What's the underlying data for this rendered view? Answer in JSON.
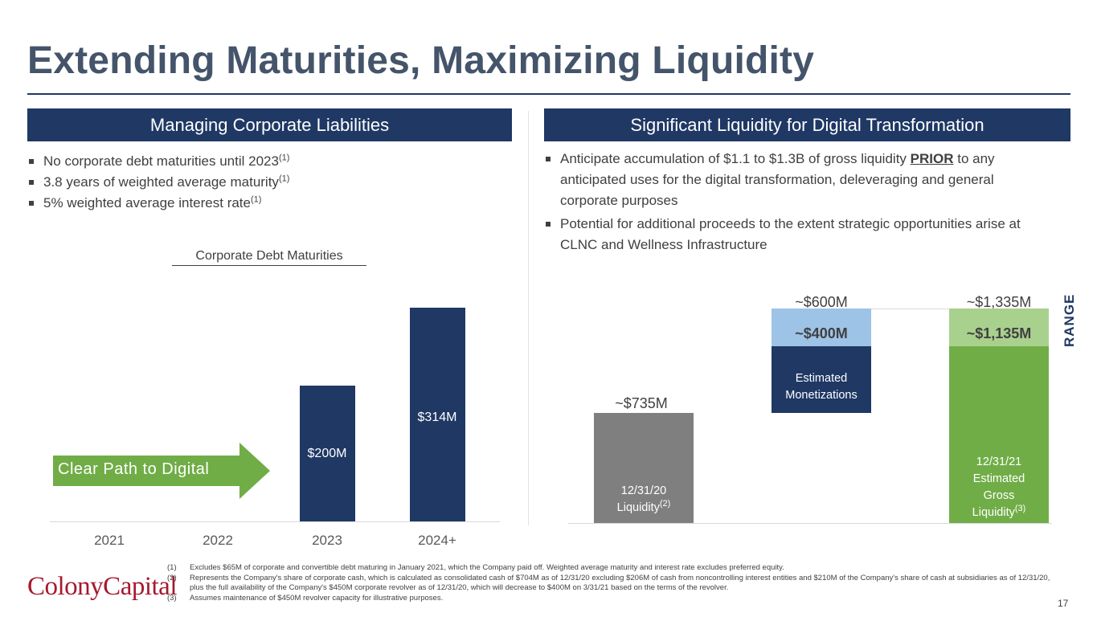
{
  "title": "Extending Maturities, Maximizing Liquidity",
  "left": {
    "header": "Managing Corporate Liabilities",
    "bullets": [
      {
        "text": "No corporate debt maturities until 2023",
        "note": "(1)"
      },
      {
        "text": "3.8 years of weighted average maturity",
        "note": "(1)"
      },
      {
        "text": "5% weighted average interest rate",
        "note": "(1)"
      }
    ],
    "arrow_text": "Clear Path to Digital"
  },
  "right": {
    "header": "Significant Liquidity for Digital Transformation",
    "bullet1_pre": "Anticipate accumulation of $1.1 to $1.3B of gross liquidity ",
    "bullet1_prior": "PRIOR",
    "bullet1_post": " to any anticipated uses for the digital transformation, deleveraging and general corporate purposes",
    "bullet2": "Potential for additional proceeds to the extent strategic opportunities arise at CLNC and Wellness Infrastructure",
    "range_label": "RANGE",
    "waterfall": {
      "start": {
        "top_label": "~$735M",
        "inner_line1": "12/31/20",
        "inner_line2": "Liquidity",
        "inner_note": "(2)",
        "value": 735
      },
      "monetizations": {
        "base_label": "~$400M",
        "top_label": "~$600M",
        "inner_line1": "Estimated",
        "inner_line2": "Monetizations",
        "low": 400,
        "high": 600
      },
      "end": {
        "base_label": "~$1,135M",
        "top_label": "~$1,335M",
        "inner_line1": "12/31/21",
        "inner_line2": "Estimated",
        "inner_line3": "Gross",
        "inner_line4": "Liquidity",
        "inner_note": "(3)",
        "low": 1135,
        "high": 1335
      }
    }
  },
  "chart_data": {
    "type": "bar",
    "title": "Corporate Debt Maturities",
    "categories": [
      "2021",
      "2022",
      "2023",
      "2024+"
    ],
    "values": [
      0,
      0,
      200,
      314
    ],
    "value_labels": [
      "",
      "",
      "$200M",
      "$314M"
    ],
    "ylabel": "",
    "xlabel": "",
    "ylim": [
      0,
      350
    ],
    "color": "#1f3864"
  },
  "footnotes": [
    {
      "num": "(1)",
      "text": "Excludes $65M of corporate and convertible debt maturing in January 2021, which the Company paid off. Weighted average maturity and interest rate excludes preferred equity."
    },
    {
      "num": "(2)",
      "text": "Represents the Company's share of corporate cash, which is calculated as consolidated cash of $704M as of 12/31/20 excluding $206M of cash from noncontrolling interest entities and $210M of the Company's share of cash at subsidiaries as of 12/31/20, plus the full availability of the Company's $450M corporate revolver as of 12/31/20, which will decrease to $400M on 3/31/21 based on the terms of the revolver."
    },
    {
      "num": "(3)",
      "text": "Assumes maintenance of $450M revolver capacity for illustrative purposes."
    }
  ],
  "logo": "ColonyCapital",
  "page_number": "17",
  "colors": {
    "navy": "#1f3864",
    "green": "#70ad47",
    "light_green": "#a9d18e",
    "light_blue": "#9dc3e6",
    "gray": "#7f7f7f",
    "title": "#44546a"
  }
}
